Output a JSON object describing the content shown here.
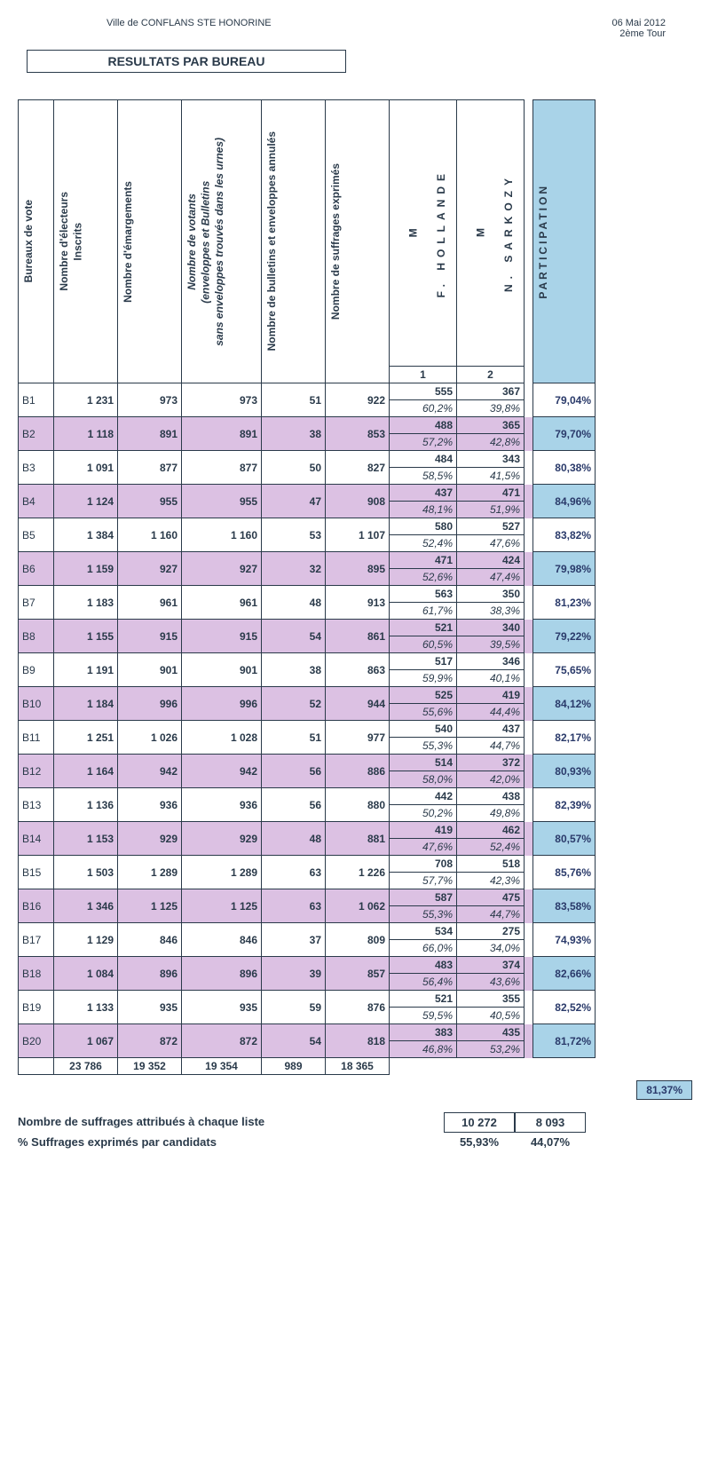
{
  "header": {
    "city": "Ville de CONFLANS STE HONORINE",
    "date": "06 Mai 2012",
    "round": "2ème Tour"
  },
  "title": "RESULTATS PAR BUREAU",
  "columns": {
    "bureau": "Bureaux de vote",
    "inscrits": "Nombre d'électeurs\nInscrits",
    "emargements": "Nombre d'émargements",
    "votants": "Nombre de votants\n(enveloppes et Bulletins\nsans enveloppes trouvés dans les urnes)",
    "annules": "Nombre de bulletins et enveloppes annulés",
    "exprimes": "Nombre de suffrages exprimés",
    "cand1_prefix": "M",
    "cand1": "F. HOLLANDE",
    "cand2_prefix": "M",
    "cand2": "N. SARKOZY",
    "participation": "PARTICIPATION",
    "num1": "1",
    "num2": "2"
  },
  "rows": [
    {
      "b": "B1",
      "ins": "1 231",
      "em": "973",
      "vo": "973",
      "an": "51",
      "ex": "922",
      "c1": "555",
      "p1": "60,2%",
      "c2": "367",
      "p2": "39,8%",
      "part": "79,04%"
    },
    {
      "b": "B2",
      "ins": "1 118",
      "em": "891",
      "vo": "891",
      "an": "38",
      "ex": "853",
      "c1": "488",
      "p1": "57,2%",
      "c2": "365",
      "p2": "42,8%",
      "part": "79,70%"
    },
    {
      "b": "B3",
      "ins": "1 091",
      "em": "877",
      "vo": "877",
      "an": "50",
      "ex": "827",
      "c1": "484",
      "p1": "58,5%",
      "c2": "343",
      "p2": "41,5%",
      "part": "80,38%"
    },
    {
      "b": "B4",
      "ins": "1 124",
      "em": "955",
      "vo": "955",
      "an": "47",
      "ex": "908",
      "c1": "437",
      "p1": "48,1%",
      "c2": "471",
      "p2": "51,9%",
      "part": "84,96%"
    },
    {
      "b": "B5",
      "ins": "1 384",
      "em": "1 160",
      "vo": "1 160",
      "an": "53",
      "ex": "1 107",
      "c1": "580",
      "p1": "52,4%",
      "c2": "527",
      "p2": "47,6%",
      "part": "83,82%"
    },
    {
      "b": "B6",
      "ins": "1 159",
      "em": "927",
      "vo": "927",
      "an": "32",
      "ex": "895",
      "c1": "471",
      "p1": "52,6%",
      "c2": "424",
      "p2": "47,4%",
      "part": "79,98%"
    },
    {
      "b": "B7",
      "ins": "1 183",
      "em": "961",
      "vo": "961",
      "an": "48",
      "ex": "913",
      "c1": "563",
      "p1": "61,7%",
      "c2": "350",
      "p2": "38,3%",
      "part": "81,23%"
    },
    {
      "b": "B8",
      "ins": "1 155",
      "em": "915",
      "vo": "915",
      "an": "54",
      "ex": "861",
      "c1": "521",
      "p1": "60,5%",
      "c2": "340",
      "p2": "39,5%",
      "part": "79,22%"
    },
    {
      "b": "B9",
      "ins": "1 191",
      "em": "901",
      "vo": "901",
      "an": "38",
      "ex": "863",
      "c1": "517",
      "p1": "59,9%",
      "c2": "346",
      "p2": "40,1%",
      "part": "75,65%"
    },
    {
      "b": "B10",
      "ins": "1 184",
      "em": "996",
      "vo": "996",
      "an": "52",
      "ex": "944",
      "c1": "525",
      "p1": "55,6%",
      "c2": "419",
      "p2": "44,4%",
      "part": "84,12%"
    },
    {
      "b": "B11",
      "ins": "1 251",
      "em": "1 026",
      "vo": "1 028",
      "an": "51",
      "ex": "977",
      "c1": "540",
      "p1": "55,3%",
      "c2": "437",
      "p2": "44,7%",
      "part": "82,17%"
    },
    {
      "b": "B12",
      "ins": "1 164",
      "em": "942",
      "vo": "942",
      "an": "56",
      "ex": "886",
      "c1": "514",
      "p1": "58,0%",
      "c2": "372",
      "p2": "42,0%",
      "part": "80,93%"
    },
    {
      "b": "B13",
      "ins": "1 136",
      "em": "936",
      "vo": "936",
      "an": "56",
      "ex": "880",
      "c1": "442",
      "p1": "50,2%",
      "c2": "438",
      "p2": "49,8%",
      "part": "82,39%"
    },
    {
      "b": "B14",
      "ins": "1 153",
      "em": "929",
      "vo": "929",
      "an": "48",
      "ex": "881",
      "c1": "419",
      "p1": "47,6%",
      "c2": "462",
      "p2": "52,4%",
      "part": "80,57%"
    },
    {
      "b": "B15",
      "ins": "1 503",
      "em": "1 289",
      "vo": "1 289",
      "an": "63",
      "ex": "1 226",
      "c1": "708",
      "p1": "57,7%",
      "c2": "518",
      "p2": "42,3%",
      "part": "85,76%"
    },
    {
      "b": "B16",
      "ins": "1 346",
      "em": "1 125",
      "vo": "1 125",
      "an": "63",
      "ex": "1 062",
      "c1": "587",
      "p1": "55,3%",
      "c2": "475",
      "p2": "44,7%",
      "part": "83,58%"
    },
    {
      "b": "B17",
      "ins": "1 129",
      "em": "846",
      "vo": "846",
      "an": "37",
      "ex": "809",
      "c1": "534",
      "p1": "66,0%",
      "c2": "275",
      "p2": "34,0%",
      "part": "74,93%"
    },
    {
      "b": "B18",
      "ins": "1 084",
      "em": "896",
      "vo": "896",
      "an": "39",
      "ex": "857",
      "c1": "483",
      "p1": "56,4%",
      "c2": "374",
      "p2": "43,6%",
      "part": "82,66%"
    },
    {
      "b": "B19",
      "ins": "1 133",
      "em": "935",
      "vo": "935",
      "an": "59",
      "ex": "876",
      "c1": "521",
      "p1": "59,5%",
      "c2": "355",
      "p2": "40,5%",
      "part": "82,52%"
    },
    {
      "b": "B20",
      "ins": "1 067",
      "em": "872",
      "vo": "872",
      "an": "54",
      "ex": "818",
      "c1": "383",
      "p1": "46,8%",
      "c2": "435",
      "p2": "53,2%",
      "part": "81,72%"
    }
  ],
  "totals": {
    "ins": "23 786",
    "em": "19 352",
    "vo": "19 354",
    "an": "989",
    "ex": "18 365"
  },
  "footer": {
    "label_votes": "Nombre de suffrages attribués à chaque liste",
    "label_pct": "%   Suffrages exprimés par candidats",
    "c1_total": "10 272",
    "c2_total": "8 093",
    "c1_pct": "55,93%",
    "c2_pct": "44,07%",
    "overall_part": "81,37%"
  },
  "style": {
    "shade_color": "#dcc1e3",
    "part_color": "#a9d3e8",
    "text_color": "#2a3a4a",
    "border_color": "#2a3a4a"
  }
}
